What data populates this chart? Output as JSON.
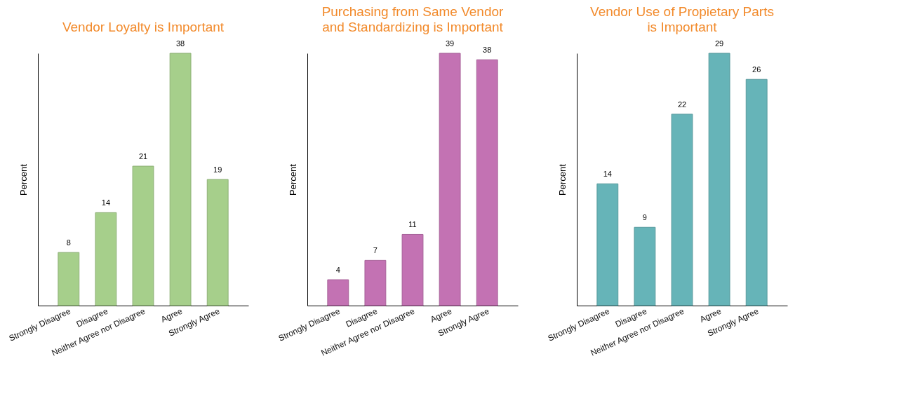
{
  "chart_data": [
    {
      "type": "bar",
      "title": "Vendor Loyalty is Important",
      "ylabel": "Percent",
      "categories": [
        "Strongly Disagree",
        "Disagree",
        "Neither Agree nor Disagree",
        "Agree",
        "Strongly Agree"
      ],
      "values": [
        8,
        14,
        21,
        38,
        19
      ],
      "color": "#a6cf8b",
      "data_labels": true,
      "tick_labels": "x"
    },
    {
      "type": "bar",
      "title": "Purchasing from Same Vendor\nand Standardizing is Important",
      "ylabel": "Percent",
      "categories": [
        "Strongly Disagree",
        "Disagree",
        "Neither Agree nor Disagree",
        "Agree",
        "Strongly Agree"
      ],
      "values": [
        4,
        7,
        11,
        39,
        38
      ],
      "color": "#c372b3",
      "data_labels": true,
      "tick_labels": "x"
    },
    {
      "type": "bar",
      "title": "Vendor Use of Propietary Parts\nis Important",
      "ylabel": "Percent",
      "categories": [
        "Strongly Disagree",
        "Disagree",
        "Neither Agree nor Disagree",
        "Agree",
        "Strongly Agree"
      ],
      "values": [
        14,
        9,
        22,
        29,
        26
      ],
      "color": "#66b4b8",
      "data_labels": true,
      "tick_labels": "x"
    }
  ]
}
